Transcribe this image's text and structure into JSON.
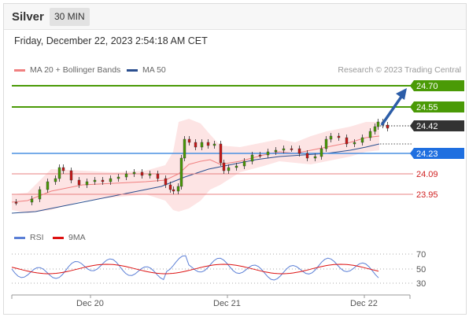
{
  "header": {
    "title": "Silver",
    "interval": "30 MIN"
  },
  "datetime": "Friday, December 22, 2023 2:54:18 AM CET",
  "legend": {
    "ma20": {
      "label": "MA 20 + Bollinger Bands",
      "color": "#f08080"
    },
    "ma50": {
      "label": "MA 50",
      "color": "#2b4f8f"
    },
    "rsi": {
      "label": "RSI",
      "color": "#5b7fd6"
    },
    "ma9": {
      "label": "9MA",
      "color": "#dd1111"
    }
  },
  "copyright": "Research © 2023 Trading Central",
  "levels": [
    {
      "id": "r2",
      "label": "24.70",
      "style": "box",
      "color": "#4a9a06",
      "textColor": "#ffffff"
    },
    {
      "id": "r1",
      "label": "24.55",
      "style": "box",
      "color": "#4a9a06",
      "textColor": "#ffffff"
    },
    {
      "id": "last",
      "label": "24.42",
      "style": "box",
      "color": "#333333",
      "textColor": "#ffffff"
    },
    {
      "id": "pivot",
      "label": "24.23",
      "style": "box",
      "color": "#1f6fe0",
      "textColor": "#ffffff"
    },
    {
      "id": "s1",
      "label": "24.09",
      "style": "text",
      "color": "#d02020",
      "textColor": "#d02020"
    },
    {
      "id": "s2",
      "label": "23.95",
      "style": "text",
      "color": "#d02020",
      "textColor": "#d02020"
    }
  ],
  "rsi_ticks": [
    "70",
    "50",
    "30"
  ],
  "x_labels": [
    "Dec 20",
    "Dec 21",
    "Dec 22"
  ]
}
